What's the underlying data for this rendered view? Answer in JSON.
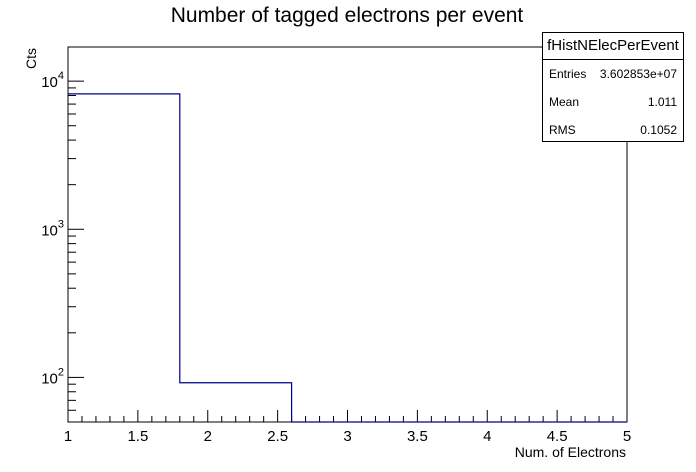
{
  "chart_data": {
    "type": "histogram",
    "title": "Number of tagged electrons per event",
    "xlabel": "Num. of Electrons",
    "ylabel": "Cts",
    "yscale": "log",
    "xlim": [
      1,
      5
    ],
    "ylim": [
      50,
      17000
    ],
    "bins": [
      {
        "low": 1.0,
        "high": 1.8,
        "count": 8200
      },
      {
        "low": 1.8,
        "high": 2.6,
        "count": 92
      },
      {
        "low": 2.6,
        "high": 3.4,
        "count": 0
      },
      {
        "low": 3.4,
        "high": 4.2,
        "count": 0
      },
      {
        "low": 4.2,
        "high": 5.0,
        "count": 0
      }
    ],
    "x_ticks": [
      {
        "value": 1,
        "label": "1"
      },
      {
        "value": 1.5,
        "label": "1.5"
      },
      {
        "value": 2,
        "label": "2"
      },
      {
        "value": 2.5,
        "label": "2.5"
      },
      {
        "value": 3,
        "label": "3"
      },
      {
        "value": 3.5,
        "label": "3.5"
      },
      {
        "value": 4,
        "label": "4"
      },
      {
        "value": 4.5,
        "label": "4.5"
      },
      {
        "value": 5,
        "label": "5"
      }
    ],
    "y_ticks": [
      {
        "value": 100,
        "base": "10",
        "exp": "2"
      },
      {
        "value": 1000,
        "base": "10",
        "exp": "3"
      },
      {
        "value": 10000,
        "base": "10",
        "exp": "4"
      }
    ],
    "line_color": "#00008b"
  },
  "stats_box": {
    "title": "fHistNElecPerEvent",
    "entries_label": "Entries",
    "entries_value": "3.602853e+07",
    "mean_label": "Mean",
    "mean_value": "1.011",
    "rms_label": "RMS",
    "rms_value": "0.1052"
  }
}
